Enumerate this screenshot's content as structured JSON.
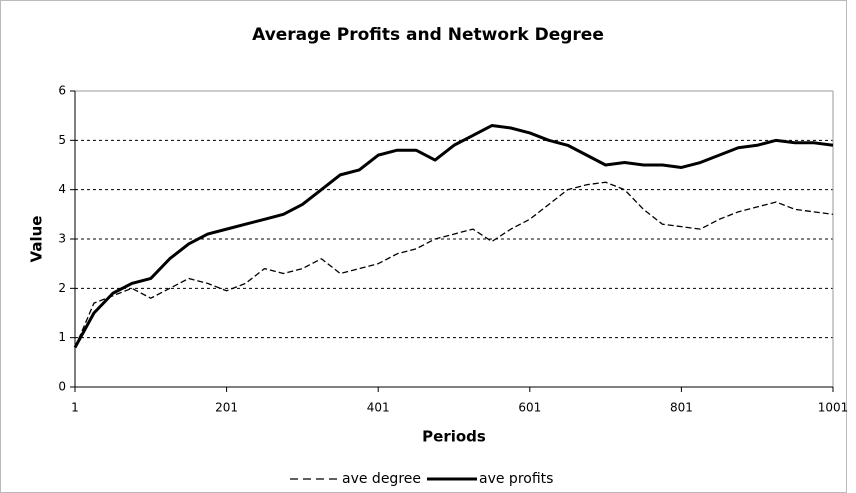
{
  "chart_data": {
    "type": "line",
    "title": "Average Profits and Network Degree",
    "x_label": "Periods",
    "y_label": "Value",
    "x": [
      1,
      26,
      51,
      76,
      101,
      126,
      151,
      176,
      201,
      226,
      251,
      276,
      301,
      326,
      351,
      376,
      401,
      426,
      451,
      476,
      501,
      526,
      551,
      576,
      601,
      626,
      651,
      676,
      701,
      726,
      751,
      776,
      801,
      826,
      851,
      876,
      901,
      926,
      951,
      976,
      1001
    ],
    "series": [
      {
        "name": "ave degree",
        "color": "#000000",
        "dash": true,
        "values": [
          0.8,
          1.7,
          1.85,
          2.0,
          1.8,
          2.0,
          2.2,
          2.1,
          1.95,
          2.1,
          2.4,
          2.3,
          2.4,
          2.6,
          2.3,
          2.4,
          2.5,
          2.7,
          2.8,
          3.0,
          3.1,
          3.2,
          2.95,
          3.2,
          3.4,
          3.7,
          4.0,
          4.1,
          4.15,
          4.0,
          3.6,
          3.3,
          3.25,
          3.2,
          3.4,
          3.55,
          3.65,
          3.75,
          3.6,
          3.55,
          3.5
        ]
      },
      {
        "name": "ave profits",
        "color": "#000000",
        "dash": false,
        "values": [
          0.8,
          1.5,
          1.9,
          2.1,
          2.2,
          2.6,
          2.9,
          3.1,
          3.2,
          3.3,
          3.4,
          3.5,
          3.7,
          4.0,
          4.3,
          4.4,
          4.7,
          4.8,
          4.8,
          4.6,
          4.9,
          5.1,
          5.3,
          5.25,
          5.15,
          5.0,
          4.9,
          4.7,
          4.5,
          4.55,
          4.5,
          4.5,
          4.45,
          4.55,
          4.7,
          4.85,
          4.9,
          5.0,
          4.95,
          4.95,
          4.9
        ]
      }
    ],
    "xlim": [
      1,
      1001
    ],
    "ylim": [
      0,
      6
    ],
    "xticks": [
      1,
      201,
      401,
      601,
      801,
      1001
    ],
    "yticks": [
      0,
      1,
      2,
      3,
      4,
      5,
      6
    ],
    "grid": true,
    "legend": "bottom"
  }
}
